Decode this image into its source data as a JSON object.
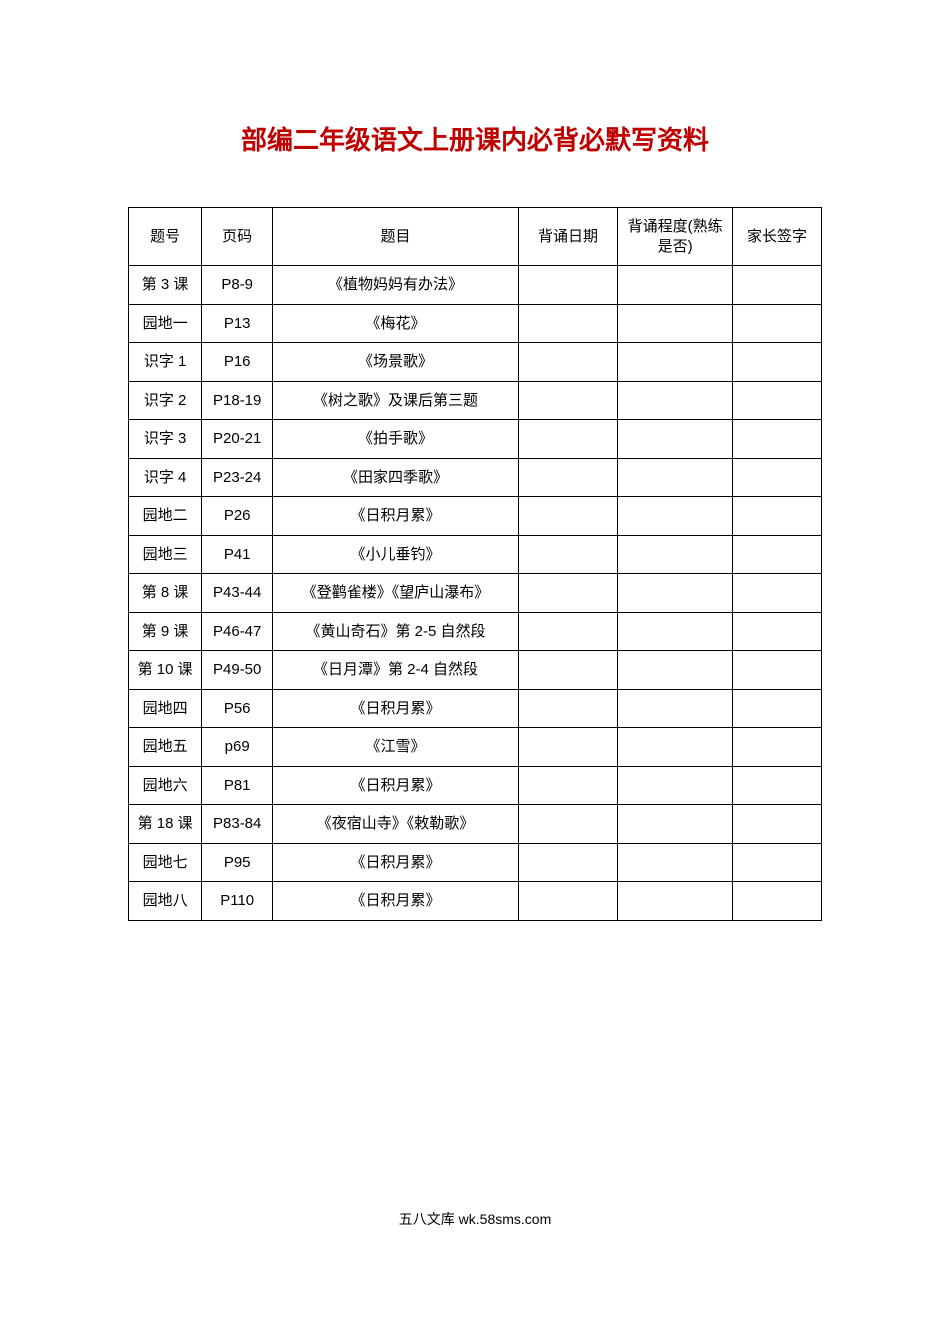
{
  "title": "部编二年级语文上册课内必背必默写资料",
  "headers": {
    "num": "题号",
    "page": "页码",
    "subject": "题目",
    "date": "背诵日期",
    "level": "背诵程度(熟练是否)",
    "sign": "家长签字"
  },
  "rows": [
    {
      "num": "第 3 课",
      "page": "P8-9",
      "subject": "《植物妈妈有办法》",
      "date": "",
      "level": "",
      "sign": ""
    },
    {
      "num": "园地一",
      "page": "P13",
      "subject": "《梅花》",
      "date": "",
      "level": "",
      "sign": ""
    },
    {
      "num": "识字 1",
      "page": "P16",
      "subject": "《场景歌》",
      "date": "",
      "level": "",
      "sign": ""
    },
    {
      "num": "识字 2",
      "page": "P18-19",
      "subject": "《树之歌》及课后第三题",
      "date": "",
      "level": "",
      "sign": ""
    },
    {
      "num": "识字 3",
      "page": "P20-21",
      "subject": "《拍手歌》",
      "date": "",
      "level": "",
      "sign": ""
    },
    {
      "num": "识字 4",
      "page": "P23-24",
      "subject": "《田家四季歌》",
      "date": "",
      "level": "",
      "sign": ""
    },
    {
      "num": "园地二",
      "page": "P26",
      "subject": "《日积月累》",
      "date": "",
      "level": "",
      "sign": ""
    },
    {
      "num": "园地三",
      "page": "P41",
      "subject": "《小儿垂钓》",
      "date": "",
      "level": "",
      "sign": ""
    },
    {
      "num": "第 8 课",
      "page": "P43-44",
      "subject": "《登鹳雀楼》《望庐山瀑布》",
      "date": "",
      "level": "",
      "sign": ""
    },
    {
      "num": "第 9 课",
      "page": "P46-47",
      "subject": "《黄山奇石》第 2-5 自然段",
      "date": "",
      "level": "",
      "sign": ""
    },
    {
      "num": "第 10 课",
      "page": "P49-50",
      "subject": "《日月潭》第 2-4 自然段",
      "date": "",
      "level": "",
      "sign": ""
    },
    {
      "num": "园地四",
      "page": "P56",
      "subject": "《日积月累》",
      "date": "",
      "level": "",
      "sign": ""
    },
    {
      "num": "园地五",
      "page": "p69",
      "subject": "《江雪》",
      "date": "",
      "level": "",
      "sign": ""
    },
    {
      "num": "园地六",
      "page": "P81",
      "subject": "《日积月累》",
      "date": "",
      "level": "",
      "sign": ""
    },
    {
      "num": "第 18 课",
      "page": "P83-84",
      "subject": "《夜宿山寺》《敕勒歌》",
      "date": "",
      "level": "",
      "sign": ""
    },
    {
      "num": "园地七",
      "page": "P95",
      "subject": "《日积月累》",
      "date": "",
      "level": "",
      "sign": ""
    },
    {
      "num": "园地八",
      "page": "P110",
      "subject": "《日积月累》",
      "date": "",
      "level": "",
      "sign": ""
    }
  ],
  "footer": "五八文库 wk.58sms.com"
}
